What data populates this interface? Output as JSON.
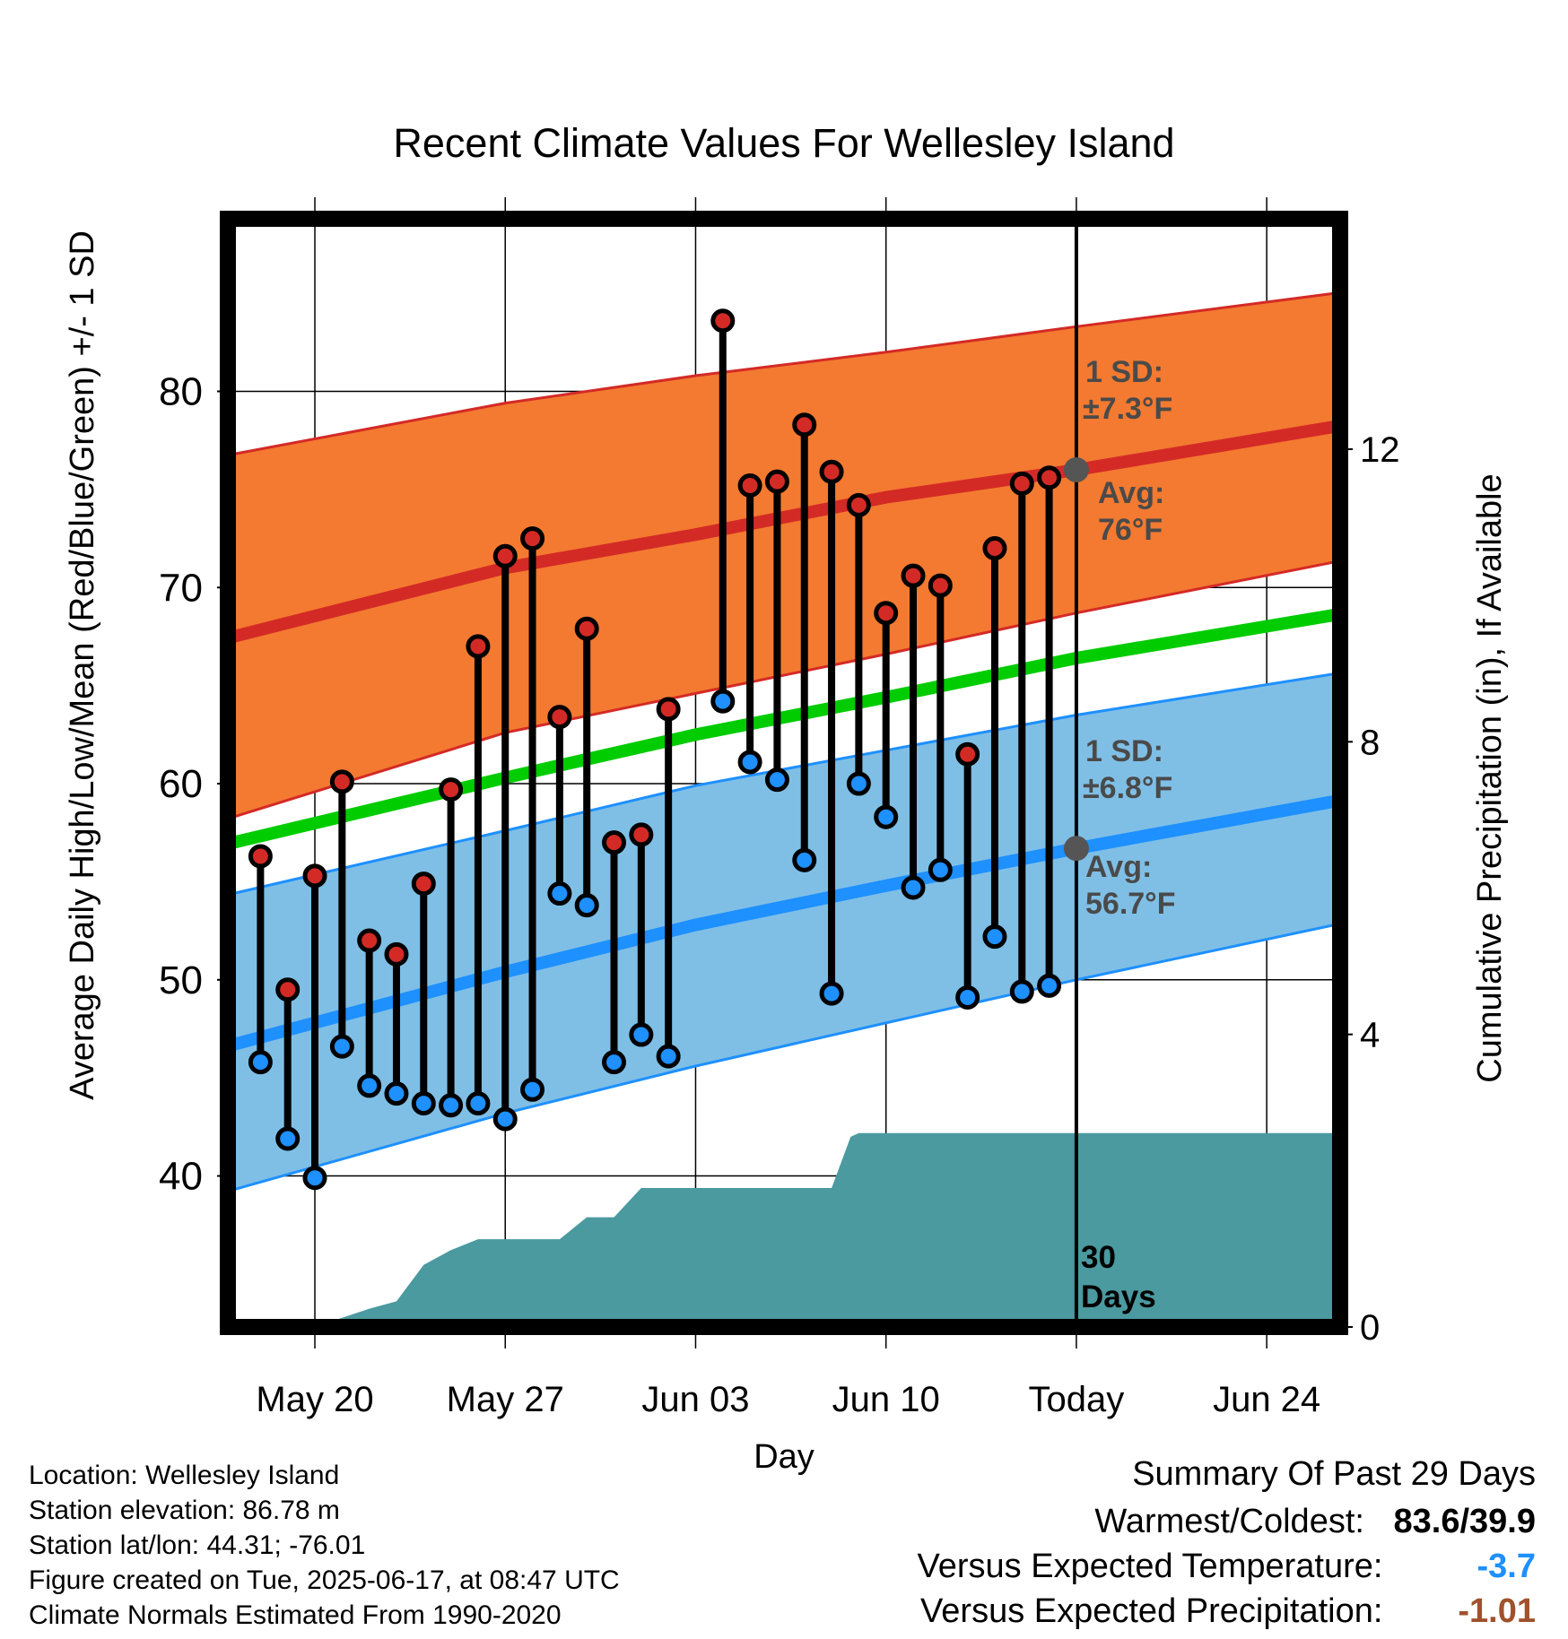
{
  "chart_data": {
    "type": "range-bar",
    "title": "Recent Climate Values For Wellesley Island",
    "xlabel": "Day",
    "ylabel": "Average Daily High/Low/Mean (Red/Blue/Green) +/- 1 SD",
    "y2label": "Cumulative Precipitation (in), If Available",
    "x_ticks": [
      {
        "day": 2,
        "label": "May 20"
      },
      {
        "day": 9,
        "label": "May 27"
      },
      {
        "day": 16,
        "label": "Jun 03"
      },
      {
        "day": 23,
        "label": "Jun 10"
      },
      {
        "day": 30,
        "label": "Today"
      },
      {
        "day": 37,
        "label": "Jun 24"
      }
    ],
    "xlim": [
      -1.2,
      39.7
    ],
    "ylim": [
      32.3,
      88.8
    ],
    "y_ticks": [
      40,
      50,
      60,
      70,
      80
    ],
    "y2lim": [
      0,
      15.15
    ],
    "y2_ticks": [
      0,
      4,
      8,
      12
    ],
    "grid": true,
    "today_day": 30,
    "normals": {
      "high_avg": {
        "x": [
          -1,
          9,
          16,
          23,
          30,
          39.5
        ],
        "values": [
          67.5,
          71.0,
          72.7,
          74.6,
          76.0,
          78.2
        ]
      },
      "high_upper": {
        "x": [
          -1,
          9,
          16,
          23,
          30,
          39.5
        ],
        "values": [
          76.8,
          79.4,
          80.8,
          82.0,
          83.3,
          85.0
        ]
      },
      "high_lower": {
        "x": [
          -1,
          9,
          16,
          23,
          30,
          39.5
        ],
        "values": [
          58.3,
          62.6,
          64.6,
          66.6,
          68.7,
          71.3
        ]
      },
      "mean": {
        "x": [
          -1,
          9,
          16,
          23,
          30,
          39.5
        ],
        "values": [
          57.0,
          60.3,
          62.5,
          64.4,
          66.4,
          68.6
        ]
      },
      "low_avg": {
        "x": [
          -1,
          9,
          16,
          23,
          30,
          39.5
        ],
        "values": [
          46.7,
          50.4,
          52.8,
          54.8,
          56.7,
          59.1
        ]
      },
      "low_upper": {
        "x": [
          -1,
          9,
          16,
          23,
          30,
          39.5
        ],
        "values": [
          54.4,
          57.6,
          59.9,
          61.7,
          63.5,
          65.6
        ]
      },
      "low_lower": {
        "x": [
          -1,
          9,
          16,
          23,
          30,
          39.5
        ],
        "values": [
          39.3,
          43.2,
          45.6,
          47.8,
          50.0,
          52.8
        ]
      }
    },
    "days": [
      0,
      1,
      2,
      3,
      4,
      5,
      6,
      7,
      8,
      9,
      10,
      11,
      12,
      13,
      14,
      15,
      17,
      18,
      19,
      20,
      21,
      22,
      23,
      24,
      25,
      26,
      27,
      28,
      29
    ],
    "highs": [
      56.3,
      49.5,
      55.3,
      60.1,
      52.0,
      51.3,
      54.9,
      59.7,
      67.0,
      71.6,
      72.5,
      63.4,
      67.9,
      57.0,
      57.4,
      63.8,
      83.6,
      75.2,
      75.4,
      78.3,
      75.9,
      74.2,
      68.7,
      70.6,
      70.1,
      61.5,
      72.0,
      75.3,
      75.6
    ],
    "lows": [
      45.8,
      41.9,
      39.9,
      46.6,
      44.6,
      44.2,
      43.7,
      43.6,
      43.7,
      42.9,
      44.4,
      54.4,
      53.8,
      45.8,
      47.2,
      46.1,
      64.2,
      61.1,
      60.2,
      56.1,
      49.3,
      60.0,
      58.3,
      54.7,
      55.6,
      49.1,
      52.2,
      49.4,
      49.7
    ],
    "precip": {
      "x": [
        2,
        4,
        5,
        6,
        7,
        8,
        9,
        10,
        11,
        12,
        13,
        14,
        15,
        16,
        17,
        18,
        19,
        20,
        21,
        21.7,
        22,
        23,
        24,
        25,
        30,
        39.5
      ],
      "values": [
        0,
        0.25,
        0.35,
        0.85,
        1.05,
        1.2,
        1.2,
        1.2,
        1.2,
        1.5,
        1.5,
        1.9,
        1.9,
        1.9,
        1.9,
        1.9,
        1.9,
        1.9,
        1.9,
        2.6,
        2.65,
        2.65,
        2.65,
        2.65,
        2.65,
        2.65
      ]
    },
    "annotations": {
      "high_sd": "1 SD:",
      "high_sd_value": "±7.3°F",
      "high_avg_label": "Avg:",
      "high_avg_value": "76°F",
      "low_sd": "1 SD:",
      "low_sd_value": "±6.8°F",
      "low_avg_label": "Avg:",
      "low_avg_value": "56.7°F",
      "precip_days": "30",
      "precip_days_unit": "Days"
    },
    "colors": {
      "high_band": "#f37a30",
      "high_line": "#d42a26",
      "mean_line": "#00cc00",
      "low_band": "#7fbfe6",
      "low_line": "#1e90ff",
      "precip_fill": "#4a9aa0",
      "high_marker": "#d42a26",
      "low_marker": "#1e90ff",
      "annotation": "#4a4a4a",
      "today_marker": "#555555"
    }
  },
  "info": {
    "location": "Location: Wellesley Island",
    "elevation": "Station elevation: 86.78 m",
    "latlon": "Station lat/lon: 44.31; -76.01",
    "created": "Figure created on Tue, 2025-06-17, at 08:47 UTC",
    "normals": "Climate Normals Estimated From 1990-2020"
  },
  "summary": {
    "title": "Summary Of Past 29 Days",
    "warmest_label": "Warmest/Coldest:",
    "warmest_value": "83.6/39.9",
    "temp_label": "Versus Expected Temperature:",
    "temp_value": "-3.7",
    "temp_color": "#1e90ff",
    "precip_label": "Versus Expected Precipitation:",
    "precip_value": "-1.01",
    "precip_color": "#a0522d"
  }
}
